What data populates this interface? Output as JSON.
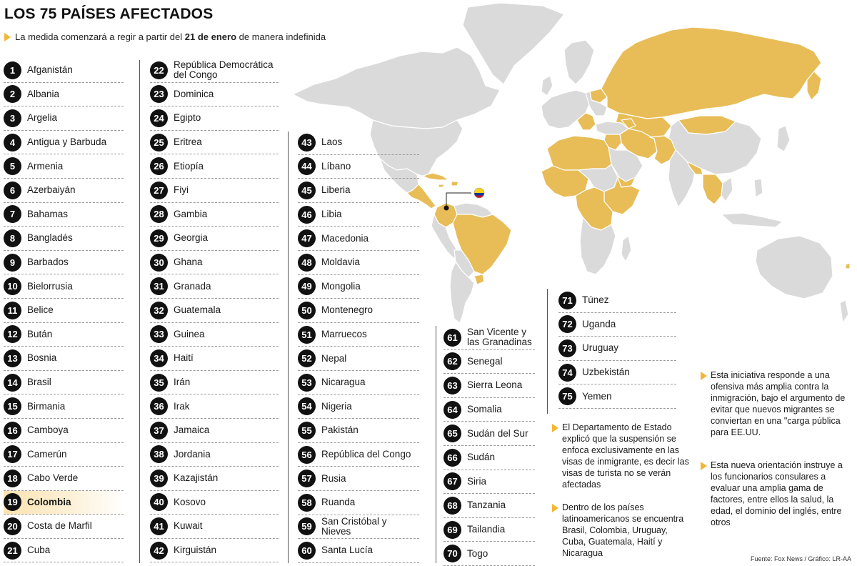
{
  "header": {
    "title": "LOS 75 PAÍSES AFECTADOS",
    "subtitle_before": "La medida comenzará a regir a partir del",
    "subtitle_bold": "21 de enero",
    "subtitle_after": "de manera indefinida"
  },
  "countries": [
    {
      "n": "1",
      "name": "Afganistán"
    },
    {
      "n": "2",
      "name": "Albania"
    },
    {
      "n": "3",
      "name": "Argelia"
    },
    {
      "n": "4",
      "name": "Antigua y Barbuda"
    },
    {
      "n": "5",
      "name": "Armenia"
    },
    {
      "n": "6",
      "name": "Azerbaiyán"
    },
    {
      "n": "7",
      "name": "Bahamas"
    },
    {
      "n": "8",
      "name": "Bangladés"
    },
    {
      "n": "9",
      "name": "Barbados"
    },
    {
      "n": "10",
      "name": "Bielorrusia"
    },
    {
      "n": "11",
      "name": "Belice"
    },
    {
      "n": "12",
      "name": "Bután"
    },
    {
      "n": "13",
      "name": "Bosnia"
    },
    {
      "n": "14",
      "name": "Brasil"
    },
    {
      "n": "15",
      "name": "Birmania"
    },
    {
      "n": "16",
      "name": "Camboya"
    },
    {
      "n": "17",
      "name": "Camerún"
    },
    {
      "n": "18",
      "name": "Cabo Verde"
    },
    {
      "n": "19",
      "name": "Colombia"
    },
    {
      "n": "20",
      "name": "Costa de Marfil"
    },
    {
      "n": "21",
      "name": "Cuba"
    },
    {
      "n": "22",
      "name": "República Democrática del Congo"
    },
    {
      "n": "23",
      "name": "Dominica"
    },
    {
      "n": "24",
      "name": "Egipto"
    },
    {
      "n": "25",
      "name": "Eritrea"
    },
    {
      "n": "26",
      "name": "Etiopía"
    },
    {
      "n": "27",
      "name": "Fiyi"
    },
    {
      "n": "28",
      "name": "Gambia"
    },
    {
      "n": "29",
      "name": "Georgia"
    },
    {
      "n": "30",
      "name": "Ghana"
    },
    {
      "n": "31",
      "name": "Granada"
    },
    {
      "n": "32",
      "name": "Guatemala"
    },
    {
      "n": "33",
      "name": "Guinea"
    },
    {
      "n": "34",
      "name": "Haití"
    },
    {
      "n": "35",
      "name": "Irán"
    },
    {
      "n": "36",
      "name": "Irak"
    },
    {
      "n": "37",
      "name": "Jamaica"
    },
    {
      "n": "38",
      "name": "Jordania"
    },
    {
      "n": "39",
      "name": "Kazajistán"
    },
    {
      "n": "40",
      "name": "Kosovo"
    },
    {
      "n": "41",
      "name": "Kuwait"
    },
    {
      "n": "42",
      "name": "Kirguistán"
    },
    {
      "n": "43",
      "name": "Laos"
    },
    {
      "n": "44",
      "name": "Líbano"
    },
    {
      "n": "45",
      "name": "Liberia"
    },
    {
      "n": "46",
      "name": "Libia"
    },
    {
      "n": "47",
      "name": "Macedonia"
    },
    {
      "n": "48",
      "name": "Moldavia"
    },
    {
      "n": "49",
      "name": "Mongolia"
    },
    {
      "n": "50",
      "name": "Montenegro"
    },
    {
      "n": "51",
      "name": "Marruecos"
    },
    {
      "n": "52",
      "name": "Nepal"
    },
    {
      "n": "53",
      "name": "Nicaragua"
    },
    {
      "n": "54",
      "name": "Nigeria"
    },
    {
      "n": "55",
      "name": "Pakistán"
    },
    {
      "n": "56",
      "name": "República del Congo"
    },
    {
      "n": "57",
      "name": "Rusia"
    },
    {
      "n": "58",
      "name": "Ruanda"
    },
    {
      "n": "59",
      "name": "San Cristóbal y Nieves"
    },
    {
      "n": "60",
      "name": "Santa Lucía"
    },
    {
      "n": "61",
      "name": "San Vicente y las Granadinas"
    },
    {
      "n": "62",
      "name": "Senegal"
    },
    {
      "n": "63",
      "name": "Sierra Leona"
    },
    {
      "n": "64",
      "name": "Somalia"
    },
    {
      "n": "65",
      "name": "Sudán del Sur"
    },
    {
      "n": "66",
      "name": "Sudán"
    },
    {
      "n": "67",
      "name": "Siria"
    },
    {
      "n": "68",
      "name": "Tanzania"
    },
    {
      "n": "69",
      "name": "Tailandia"
    },
    {
      "n": "70",
      "name": "Togo"
    },
    {
      "n": "71",
      "name": "Túnez"
    },
    {
      "n": "72",
      "name": "Uganda"
    },
    {
      "n": "73",
      "name": "Uruguay"
    },
    {
      "n": "74",
      "name": "Uzbekistán"
    },
    {
      "n": "75",
      "name": "Yemen"
    }
  ],
  "highlighted": "19",
  "notes": {
    "departamento": "El Departamento de Estado explicó que la suspensión se enfoca exclusivamente en las visas de inmigrante, es decir las visas de turista no se verán afectadas",
    "latam": "Dentro de los países latinoamericanos se encuentra Brasil, Colombia, Uruguay, Cuba, Guatemala, Haití y Nicaragua",
    "iniciativa": "Esta iniciativa responde a una ofensiva más amplia contra la inmigración, bajo el argumento de evitar que nuevos migrantes se conviertan en una \"carga pública para EE.UU.",
    "orientacion": "Esta nueva orientación instruye a los funcionarios consulares a evaluar una amplia gama de factores, entre ellos la salud, la edad, el dominio del inglés, entre otros"
  },
  "source": "Fuente: Fox News / Gráfico: LR-AA",
  "colors": {
    "affected": "#e8bd57",
    "land": "#dadada",
    "border": "#ffffff",
    "badge": "#111111",
    "accent": "#f2b736",
    "highlight": "#fbe3b1"
  }
}
